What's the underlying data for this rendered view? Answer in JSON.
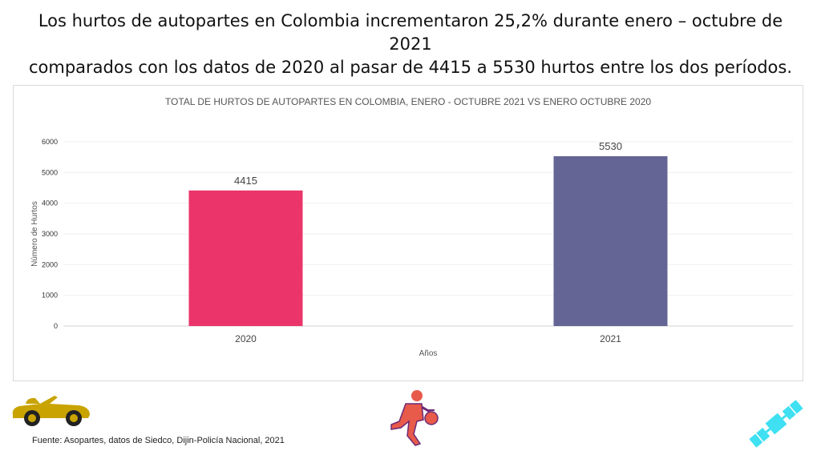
{
  "headline": {
    "line1": "Los hurtos de  autopartes en Colombia incrementaron 25,2% durante enero – octubre de 2021",
    "line2": "comparados con los datos de 2020 al pasar de 4415 a 5530 hurtos entre los dos períodos."
  },
  "source": "Fuente: Asopartes, datos de Siedco, Dijin-Policía Nacional, 2021",
  "icons": [
    "convertible-car-icon",
    "thief-running-icon",
    "satellite-icon"
  ],
  "colors": {
    "bar_2020": "#ea346a",
    "bar_2021": "#646595",
    "car": "#c9a400",
    "thief": "#e85a4a",
    "satellite": "#3fe0f2"
  },
  "chart_data": {
    "type": "bar",
    "title": "TOTAL DE HURTOS DE AUTOPARTES EN COLOMBIA, ENERO - OCTUBRE 2021 VS ENERO OCTUBRE 2020",
    "categories": [
      "2020",
      "2021"
    ],
    "values": [
      4415,
      5530
    ],
    "data_labels": [
      "4415",
      "5530"
    ],
    "bar_colors": [
      "#ea346a",
      "#646595"
    ],
    "xlabel": "Años",
    "ylabel": "Número de Hurtos",
    "ylim": [
      0,
      6000
    ],
    "yticks": [
      0,
      1000,
      2000,
      3000,
      4000,
      5000,
      6000
    ],
    "grid": true,
    "legend": "none"
  }
}
